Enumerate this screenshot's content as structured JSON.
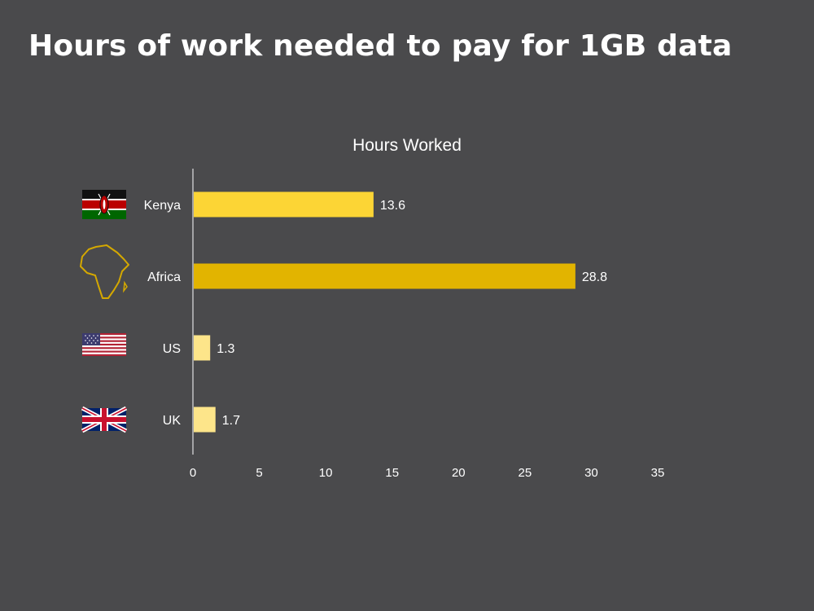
{
  "slide": {
    "title": "Hours of work needed to pay for 1GB data"
  },
  "chart_data": {
    "type": "bar",
    "orientation": "horizontal",
    "title": "Hours Worked",
    "categories": [
      "Kenya",
      "Africa",
      "US",
      "UK"
    ],
    "values": [
      13.6,
      28.8,
      1.3,
      1.7
    ],
    "value_labels": [
      "13.6",
      "28.8",
      "1.3",
      "1.7"
    ],
    "bar_colors": [
      "#fcd535",
      "#e2b400",
      "#fde58a",
      "#fde58a"
    ],
    "icons": [
      "kenya-flag-icon",
      "africa-map-icon",
      "us-flag-icon",
      "uk-flag-icon"
    ],
    "xlim": [
      0,
      35
    ],
    "xticks": [
      0,
      5,
      10,
      15,
      20,
      25,
      30,
      35
    ],
    "grid": false,
    "xlabel": "",
    "ylabel": ""
  }
}
